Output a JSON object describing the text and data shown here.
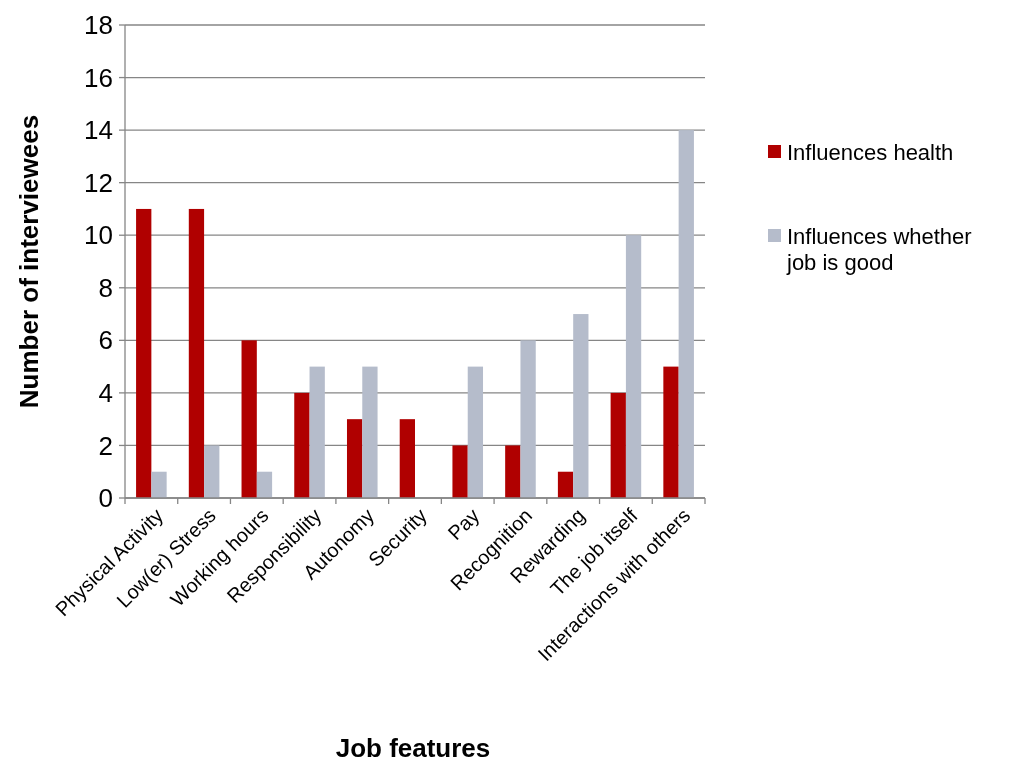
{
  "chart_data": {
    "type": "bar",
    "xlabel": "Job features",
    "ylabel": "Number of interviewees",
    "categories": [
      "Physical Activity",
      "Low(er) Stress",
      "Working hours",
      "Responsibility",
      "Autonomy",
      "Security",
      "Pay",
      "Recognition",
      "Rewarding",
      "The job itself",
      "Interactions with others"
    ],
    "series": [
      {
        "name": "Influences health",
        "color": "#b00000",
        "values": [
          11,
          11,
          6,
          4,
          3,
          3,
          2,
          2,
          1,
          4,
          5
        ]
      },
      {
        "name": "Influences whether job is good",
        "color": "#b5bccb",
        "values": [
          1,
          2,
          1,
          5,
          5,
          0,
          5,
          6,
          7,
          10,
          14
        ]
      }
    ],
    "ylim": [
      0,
      18
    ],
    "yticks": [
      0,
      2,
      4,
      6,
      8,
      10,
      12,
      14,
      16,
      18
    ],
    "grid": "y",
    "legend": "right"
  }
}
